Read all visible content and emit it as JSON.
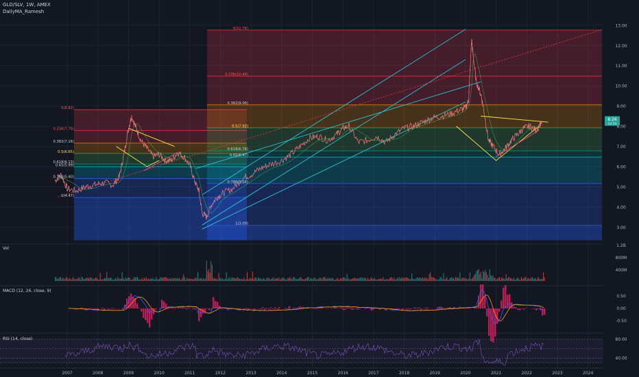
{
  "header": {
    "symbol_line": "GLD/SLV, 1W, AMEX",
    "indicator_line": "DailyMA_Ramesh"
  },
  "price_badge": {
    "value": "8.26",
    "sub": "1d 5h"
  },
  "colors": {
    "background": "#131722",
    "price_line": "#d1d4dc",
    "channel": "#26c6da",
    "triangle": "#ffeb3b",
    "support": "#ff4081",
    "macd_line": "#2962ff",
    "signal_line": "#ff9800",
    "histogram": "#e91e63",
    "rsi_line": "#7e57c2"
  },
  "chart_data": [
    {
      "type": "line",
      "pane": "price",
      "y_ticks": [
        "13.00",
        "12.00",
        "11.00",
        "10.00",
        "9.00",
        "8.00",
        "7.00",
        "6.00",
        "5.00",
        "4.00",
        "3.00"
      ],
      "x_ticks": [
        "2007",
        "2008",
        "2009",
        "2010",
        "2011",
        "2012",
        "2013",
        "2014",
        "2015",
        "2016",
        "2017",
        "2018",
        "2019",
        "2020",
        "2021",
        "2022",
        "2023",
        "2024"
      ],
      "ylim": [
        2.3,
        13.3
      ],
      "xlim": [
        2006.55,
        2024.5
      ],
      "series": [
        {
          "x": [
            2006.6,
            2006.8,
            2007.0,
            2007.3,
            2007.6,
            2007.9,
            2008.2,
            2008.5,
            2008.7,
            2008.85,
            2009.0,
            2009.1,
            2009.25,
            2009.4,
            2009.6,
            2009.8,
            2010.0,
            2010.2,
            2010.4,
            2010.6,
            2010.8,
            2011.0,
            2011.15,
            2011.3,
            2011.4,
            2011.55,
            2011.7,
            2011.9,
            2012.1,
            2012.4,
            2012.7,
            2013.0,
            2013.3,
            2013.6,
            2014.0,
            2014.3,
            2014.6,
            2014.9,
            2015.2,
            2015.5,
            2015.8,
            2016.0,
            2016.2,
            2016.5,
            2016.8,
            2017.1,
            2017.4,
            2017.7,
            2018.0,
            2018.3,
            2018.6,
            2018.9,
            2019.2,
            2019.5,
            2019.8,
            2020.0,
            2020.1,
            2020.2,
            2020.25,
            2020.35,
            2020.5,
            2020.6,
            2020.75,
            2020.9,
            2021.1,
            2021.3,
            2021.5,
            2021.7,
            2021.9,
            2022.1,
            2022.3,
            2022.5
          ],
          "y": [
            5.3,
            5.6,
            4.9,
            4.8,
            5.0,
            5.1,
            5.2,
            5.1,
            5.5,
            6.6,
            7.9,
            8.5,
            7.9,
            7.3,
            6.9,
            6.5,
            6.6,
            6.3,
            6.3,
            6.7,
            6.5,
            6.1,
            5.3,
            4.8,
            3.7,
            3.5,
            4.1,
            4.5,
            4.7,
            4.9,
            5.4,
            5.6,
            5.9,
            6.1,
            6.3,
            6.6,
            7.0,
            7.4,
            7.5,
            7.3,
            7.6,
            7.9,
            8.0,
            7.2,
            7.3,
            7.5,
            7.2,
            7.6,
            7.9,
            8.0,
            8.2,
            8.4,
            8.5,
            8.6,
            8.8,
            8.9,
            9.3,
            12.3,
            11.5,
            10.2,
            9.6,
            8.8,
            7.3,
            7.0,
            6.6,
            6.9,
            7.3,
            7.6,
            7.9,
            8.0,
            7.8,
            8.26
          ]
        }
      ]
    },
    {
      "type": "area",
      "pane": "fib_retracement_2008_2011",
      "levels": [
        {
          "label": "0(8.82)",
          "value": 8.82
        },
        {
          "label": "0.236(7.79)",
          "value": 7.79
        },
        {
          "label": "0.382(7.16)",
          "value": 7.16
        },
        {
          "label": "0.5(6.65)",
          "value": 6.65
        },
        {
          "label": "0.618(6.13)",
          "value": 6.13
        },
        {
          "label": "0.65(5.99)",
          "value": 5.99
        },
        {
          "label": "0.786(5.40)",
          "value": 5.4
        },
        {
          "label": "1(4.47)",
          "value": 4.47
        }
      ]
    },
    {
      "type": "area",
      "pane": "fib_retracement_2011_2020",
      "levels": [
        {
          "label": "0(12.76)",
          "value": 12.76
        },
        {
          "label": "0.236(10.48)",
          "value": 10.48
        },
        {
          "label": "0.382(9.06)",
          "value": 9.06
        },
        {
          "label": "0.5(7.92)",
          "value": 7.92
        },
        {
          "label": "0.618(6.78)",
          "value": 6.78
        },
        {
          "label": "0.65(6.47)",
          "value": 6.47
        },
        {
          "label": "0.786(5.16)",
          "value": 5.16
        },
        {
          "label": "1(3.09)",
          "value": 3.09
        }
      ]
    },
    {
      "type": "bar",
      "pane": "volume",
      "title": "Vol",
      "y_ticks": [
        "1.2B",
        "800M",
        "400M"
      ]
    },
    {
      "type": "line",
      "pane": "macd",
      "title": "MACD (12, 26, close, 9)",
      "y_ticks": [
        "0.50",
        "0.00",
        "-0.50"
      ],
      "ylim": [
        -0.8,
        0.8
      ]
    },
    {
      "type": "line",
      "pane": "rsi",
      "title": "RSI (14, close)",
      "y_ticks": [
        "80.00",
        "40.00"
      ],
      "ylim": [
        20,
        90
      ]
    }
  ]
}
